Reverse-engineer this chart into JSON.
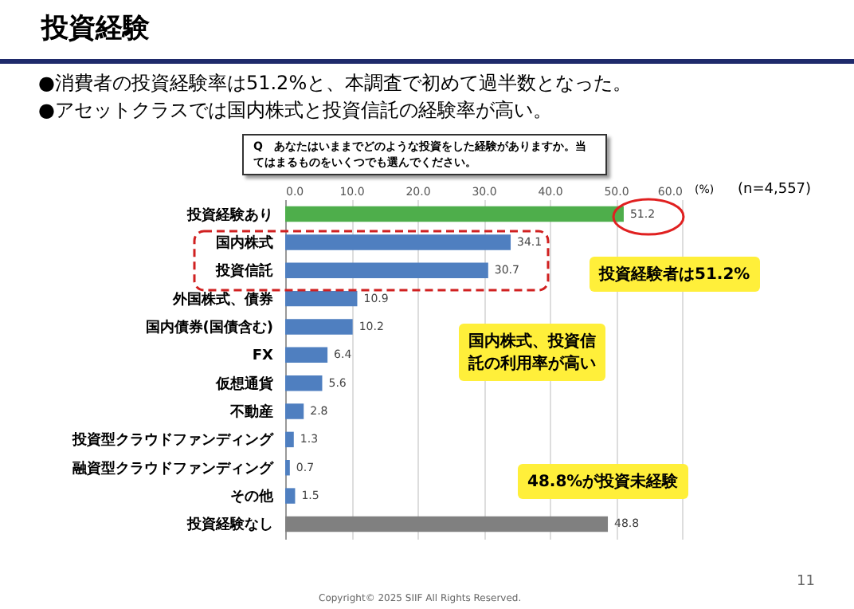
{
  "chart_data": {
    "type": "bar",
    "orientation": "horizontal",
    "title": "投資経験",
    "categories": [
      "投資経験あり",
      "国内株式",
      "投資信託",
      "外国株式、債券",
      "国内債券(国債含む)",
      "FX",
      "仮想通貨",
      "不動産",
      "投資型クラウドファンディング",
      "融資型クラウドファンディング",
      "その他",
      "投資経験なし"
    ],
    "values": [
      51.2,
      34.1,
      30.7,
      10.9,
      10.2,
      6.4,
      5.6,
      2.8,
      1.3,
      0.7,
      1.5,
      48.8
    ],
    "colors": [
      "#4eae4b",
      "#4f7fc0",
      "#4f7fc0",
      "#4f7fc0",
      "#4f7fc0",
      "#4f7fc0",
      "#4f7fc0",
      "#4f7fc0",
      "#4f7fc0",
      "#4f7fc0",
      "#4f7fc0",
      "#808080"
    ],
    "xlabel": "(%)",
    "xlim": [
      0,
      60
    ],
    "xticks": [
      {
        "value": 0,
        "label": "0.0"
      },
      {
        "value": 10,
        "label": "10.0"
      },
      {
        "value": 20,
        "label": "20.0"
      },
      {
        "value": 30,
        "label": "30.0"
      },
      {
        "value": 40,
        "label": "40.0"
      },
      {
        "value": 50,
        "label": "50.0"
      },
      {
        "value": 60,
        "label": "60.0"
      }
    ],
    "grid": "x",
    "data_labels": true,
    "annotations": [
      "●消費者の投資経験率は51.2%と、本調査で初めて過半数となった。",
      "●アセットクラスでは国内株式と投資信託の経験率が高い。",
      "Q　あなたはいままでどのような投資をした経験がありますか。当てはまるものをいくつでも選んでください。",
      "(n=4,557)",
      "投資経験者は51.2%",
      "国内株式、投資信託の利用率が高い",
      "48.8%が投資未経験",
      "11",
      "Copyright© 2025 SIIF All Rights Reserved."
    ]
  }
}
